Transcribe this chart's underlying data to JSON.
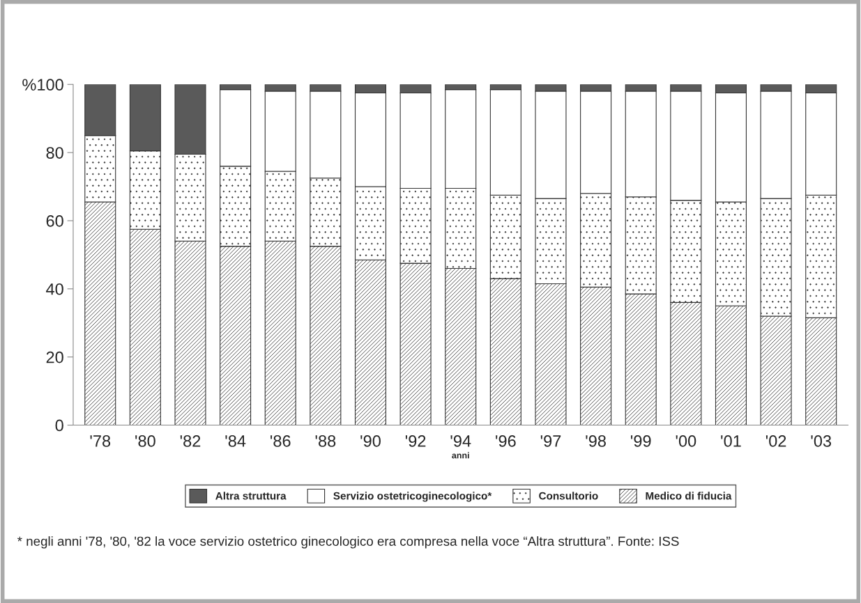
{
  "chart_data": {
    "type": "bar",
    "stacked": true,
    "xlabel": "anni",
    "categories": [
      "'78",
      "'80",
      "'82",
      "'84",
      "'86",
      "'88",
      "'90",
      "'92",
      "'94",
      "'96",
      "'97",
      "'98",
      "'99",
      "'00",
      "'01",
      "'02",
      "'03"
    ],
    "series": [
      {
        "name": "Medico di fiducia",
        "color": "#333333",
        "values": [
          65.5,
          57.5,
          54,
          52.5,
          54,
          52.5,
          48.5,
          47.5,
          46,
          43,
          41.5,
          40.5,
          38.5,
          36,
          35,
          32,
          31.5
        ]
      },
      {
        "name": "Consultorio",
        "color": "#333333",
        "values": [
          19.5,
          23,
          25.5,
          23.5,
          20.5,
          20,
          21.5,
          22,
          23.5,
          24.5,
          25,
          27.5,
          28.5,
          30,
          30.5,
          34.5,
          36
        ]
      },
      {
        "name": "Servizio ostetricoginecologico*",
        "color": "#ffffff",
        "values": [
          null,
          null,
          null,
          22.5,
          23.5,
          25.5,
          27.5,
          28,
          29,
          31,
          31.5,
          30,
          31,
          32,
          32,
          31.5,
          30
        ]
      },
      {
        "name": "Altra struttura",
        "color": "#5a5a5a",
        "values": [
          15,
          19.5,
          20.5,
          1.5,
          2,
          2,
          2.5,
          2.5,
          1.5,
          1.5,
          2,
          2,
          2,
          2,
          2.5,
          2,
          2.5
        ]
      }
    ],
    "ylim": [
      0,
      100
    ],
    "yticks": [
      0,
      20,
      40,
      60,
      80,
      {
        "value": 100,
        "label": "%100"
      }
    ],
    "grid": false,
    "legend": "bottom",
    "annotations": [
      "* negli anni '78, '80, '82 la voce servizio ostetrico ginecologico era compresa nella voce “Altra struttura”. Fonte: ISS"
    ]
  }
}
